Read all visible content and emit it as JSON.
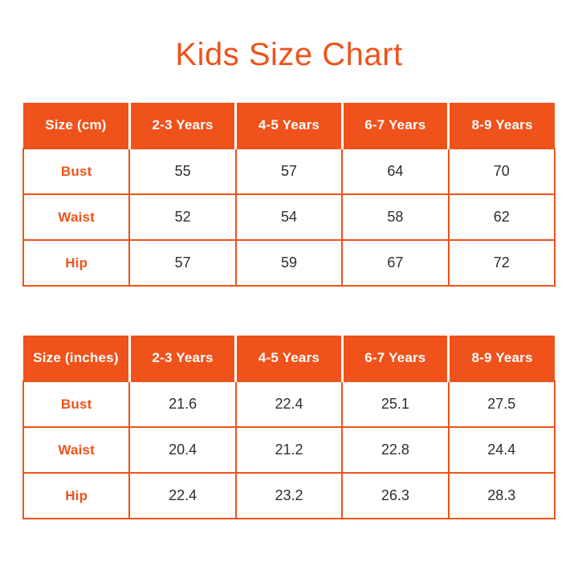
{
  "title": "Kids Size Chart",
  "colors": {
    "accent": "#F0521B",
    "value_text": "#2E2E2E",
    "header_text": "#FFFFFF",
    "background": "#FFFFFF"
  },
  "chart_data": [
    {
      "type": "table",
      "title": "Size (cm)",
      "columns": [
        "Size (cm)",
        "2-3 Years",
        "4-5 Years",
        "6-7 Years",
        "8-9 Years"
      ],
      "rows": [
        {
          "label": "Bust",
          "values": [
            55,
            57,
            64,
            70
          ]
        },
        {
          "label": "Waist",
          "values": [
            52,
            54,
            58,
            62
          ]
        },
        {
          "label": "Hip",
          "values": [
            57,
            59,
            67,
            72
          ]
        }
      ]
    },
    {
      "type": "table",
      "title": "Size (inches)",
      "columns": [
        "Size (inches)",
        "2-3 Years",
        "4-5 Years",
        "6-7 Years",
        "8-9 Years"
      ],
      "rows": [
        {
          "label": "Bust",
          "values": [
            21.6,
            22.4,
            25.1,
            27.5
          ]
        },
        {
          "label": "Waist",
          "values": [
            20.4,
            21.2,
            22.8,
            24.4
          ]
        },
        {
          "label": "Hip",
          "values": [
            22.4,
            23.2,
            26.3,
            28.3
          ]
        }
      ]
    }
  ]
}
